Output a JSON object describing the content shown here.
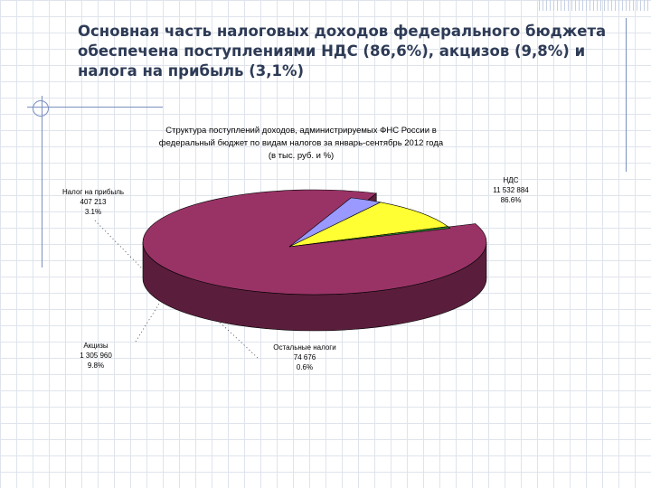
{
  "slide": {
    "title_lines": [
      "Основная часть налоговых доходов федерального бюджета",
      "обеспечена поступлениями НДС (86,6%), акцизов (9,8%) и",
      "налога на прибыль (3,1%)"
    ]
  },
  "chart_data": {
    "type": "pie",
    "title_lines": [
      "Структура поступлений доходов, администрируемых ФНС России в",
      "федеральный бюджет по видам налогов за январь-сентябрь 2012 года",
      "(в тыс. руб. и %)"
    ],
    "slices": [
      {
        "name": "НДС",
        "value": 11532884,
        "value_label": "11 532 884",
        "percent": 86.6,
        "percent_label": "86.6%",
        "color": "#993366",
        "side_color": "#5a1e3c"
      },
      {
        "name": "Налог на прибыль",
        "value": 407213,
        "value_label": "407 213",
        "percent": 3.1,
        "percent_label": "3.1%",
        "color": "#9999ff",
        "side_color": "#55559a"
      },
      {
        "name": "Акцизы",
        "value": 1305960,
        "value_label": "1 305 960",
        "percent": 9.8,
        "percent_label": "9.8%",
        "color": "#ffff33",
        "side_color": "#8c8c1a"
      },
      {
        "name": "Остальные налоги",
        "value": 74676,
        "value_label": "74 676",
        "percent": 0.6,
        "percent_label": "0.6%",
        "color": "#2e8b2e",
        "side_color": "#156315"
      }
    ],
    "legend": "none",
    "style": "3d-exploded-pie"
  }
}
